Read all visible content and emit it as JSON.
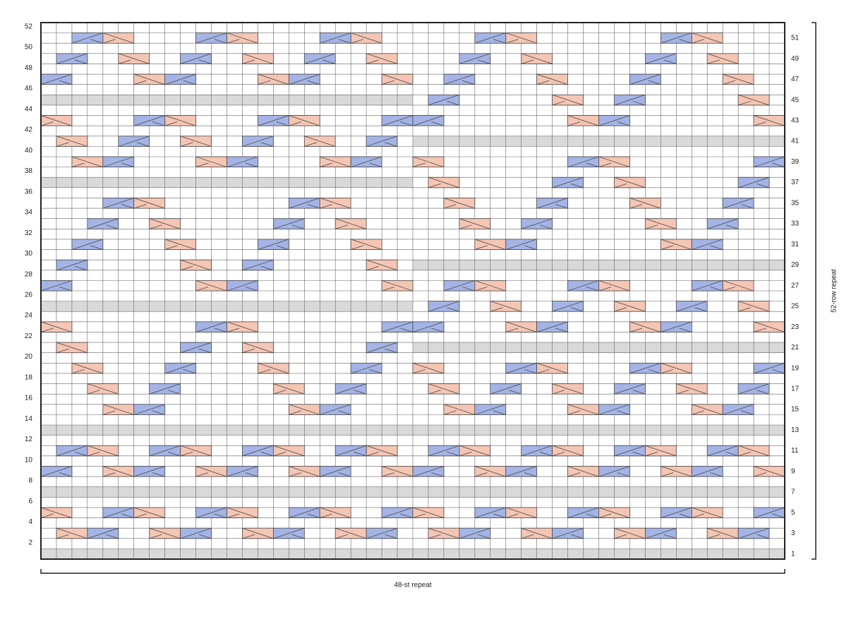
{
  "left_row_numbers": [
    52,
    50,
    48,
    46,
    44,
    42,
    40,
    38,
    36,
    34,
    32,
    30,
    28,
    26,
    24,
    22,
    20,
    18,
    16,
    14,
    12,
    10,
    8,
    6,
    4,
    2
  ],
  "right_row_numbers": [
    51,
    49,
    47,
    45,
    43,
    41,
    39,
    37,
    35,
    33,
    31,
    29,
    27,
    25,
    23,
    21,
    19,
    17,
    15,
    13,
    11,
    9,
    7,
    5,
    3,
    1
  ],
  "width_label": "48-st repeat",
  "height_label": "52-row repeat"
}
